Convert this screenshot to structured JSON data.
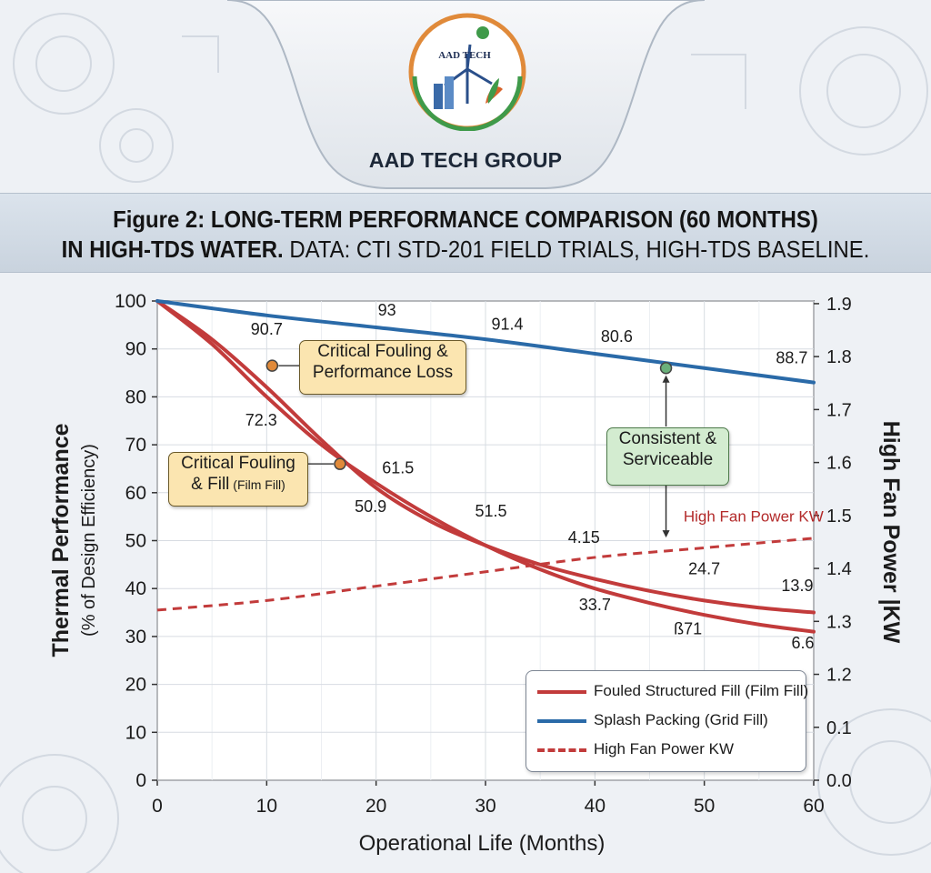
{
  "brand": {
    "logo_text": "AAD TECH",
    "name": "AAD TECH GROUP"
  },
  "figure": {
    "title_line1": "Figure 2: LONG-TERM PERFORMANCE COMPARISON (60 MONTHS)",
    "title_line2_bold": "IN HIGH-TDS WATER.",
    "title_line2_rest": " DATA: CTI STD-201 FIELD TRIALS, HIGH-TDS BASELINE."
  },
  "chart_data": {
    "type": "line",
    "xlabel": "Operational Life (Months)",
    "ylabel_left": "Thermal Performance",
    "ylabel_left_sub": "(% of Design Efficiency)",
    "ylabel_right": "High Fan Power |KW",
    "xlim": [
      0,
      60
    ],
    "ylim_left": [
      0,
      100
    ],
    "x_ticks": [
      "0",
      "10",
      "20",
      "30",
      "40",
      "50",
      "60"
    ],
    "y_ticks_left": [
      "0",
      "10",
      "20",
      "30",
      "40",
      "50",
      "60",
      "70",
      "80",
      "90",
      "100"
    ],
    "y_ticks_right": [
      "0.0",
      "0.1",
      "1.2",
      "1.3",
      "1.4",
      "1.5",
      "1.6",
      "1.7",
      "1.8",
      "1.9"
    ],
    "grid": true,
    "colors": {
      "red": "#c23b3b",
      "blue": "#2a6aa8"
    },
    "series": [
      {
        "name": "Fouled Structured Fill (Film Fill)",
        "style": "solid",
        "color": "#c23b3b",
        "x": [
          0,
          5,
          10,
          15,
          20,
          25,
          30,
          35,
          40,
          45,
          50,
          55,
          60
        ],
        "y": [
          100,
          92,
          82,
          71,
          61,
          54,
          49,
          45,
          42,
          39.5,
          37.5,
          36,
          35
        ]
      },
      {
        "name": "Fouled Structured Fill (Film Fill)",
        "style": "solid",
        "color": "#c23b3b",
        "legend": false,
        "x": [
          0,
          5,
          10,
          15,
          20,
          25,
          30,
          35,
          40,
          45,
          50,
          55,
          60
        ],
        "y": [
          100,
          91,
          80,
          70,
          62,
          55,
          49,
          44,
          40,
          37,
          34.5,
          32.5,
          31
        ]
      },
      {
        "name": "Splash Packing (Grid Fill)",
        "style": "solid",
        "color": "#2a6aa8",
        "x": [
          0,
          10,
          20,
          30,
          40,
          50,
          60
        ],
        "y": [
          100,
          97,
          94.5,
          92,
          89,
          86,
          83
        ]
      },
      {
        "name": "High Fan Power KW",
        "style": "dashed",
        "color": "#c23b3b",
        "x": [
          0,
          10,
          20,
          30,
          40,
          50,
          60
        ],
        "y": [
          35.5,
          37.5,
          40.5,
          43.5,
          46.5,
          48.5,
          50.5
        ]
      }
    ],
    "annotations": [
      {
        "text": "90.7",
        "x": 10,
        "y": 93
      },
      {
        "text": "93",
        "x": 21,
        "y": 97
      },
      {
        "text": "91.4",
        "x": 32,
        "y": 94
      },
      {
        "text": "80.6",
        "x": 42,
        "y": 91.5
      },
      {
        "text": "88.7",
        "x": 58,
        "y": 87
      },
      {
        "text": "72.3",
        "x": 9.5,
        "y": 74
      },
      {
        "text": "61.5",
        "x": 22,
        "y": 64
      },
      {
        "text": "50.9",
        "x": 19.5,
        "y": 56
      },
      {
        "text": "51.5",
        "x": 30.5,
        "y": 55
      },
      {
        "text": "4.15",
        "x": 39,
        "y": 49.5
      },
      {
        "text": "24.7",
        "x": 50,
        "y": 43
      },
      {
        "text": "13.9",
        "x": 58.5,
        "y": 39.5
      },
      {
        "text": "33.7",
        "x": 40,
        "y": 35.5
      },
      {
        "text": "ß71",
        "x": 48.5,
        "y": 30.5
      },
      {
        "text": "6.6",
        "x": 59,
        "y": 27.5
      },
      {
        "text": "High Fan Power KW",
        "x": 54.5,
        "y": 54
      }
    ],
    "markers": [
      {
        "x": 10.5,
        "y": 86.5,
        "color": "#e08a3a"
      },
      {
        "x": 16.7,
        "y": 66,
        "color": "#e08a3a"
      },
      {
        "x": 46.5,
        "y": 86,
        "color": "#6ab07a"
      }
    ],
    "callouts": [
      {
        "line1": "Critical Fouling &",
        "line2": "Performance Loss"
      },
      {
        "line1": "Critical Fouling",
        "line2": "& Fill",
        "line2_small": " (Film Fill)"
      },
      {
        "line1": "Consistent &",
        "line2": "Serviceable"
      }
    ],
    "legend": {
      "position": "bottom-right",
      "entries": [
        "Fouled Structured Fill (Film Fill)",
        "Splash Packing (Grid Fill)",
        "High Fan Power KW"
      ]
    }
  }
}
